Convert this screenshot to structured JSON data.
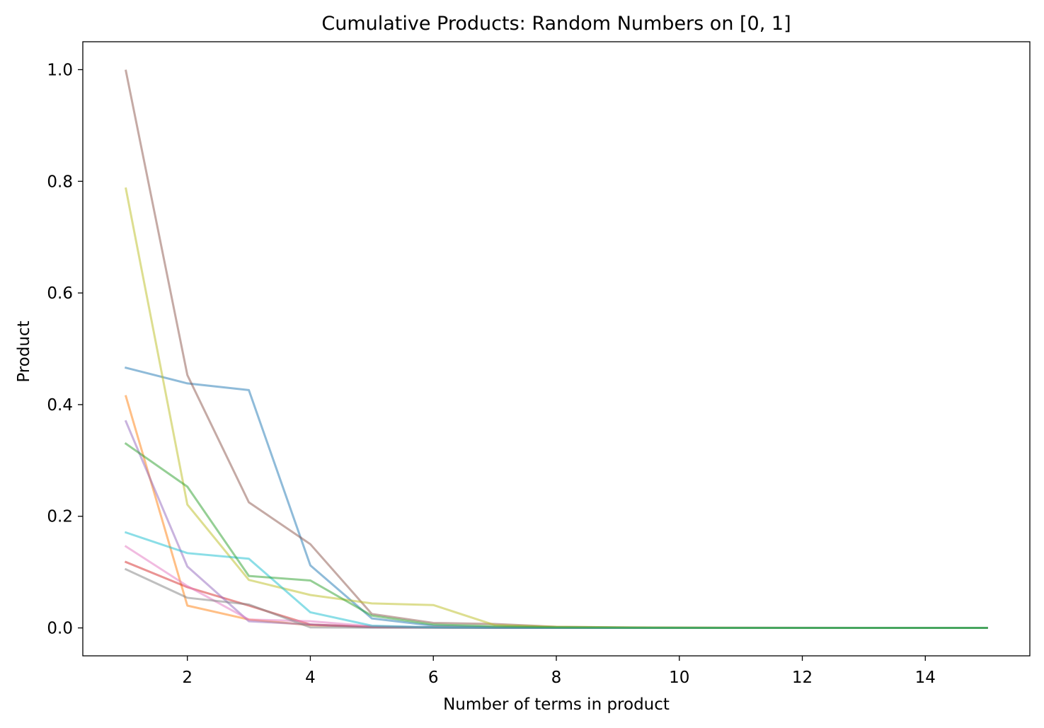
{
  "chart_data": {
    "type": "line",
    "title": "Cumulative Products: Random Numbers on [0, 1]",
    "xlabel": "Number of terms in product",
    "ylabel": "Product",
    "xlim": [
      0.3,
      15.7
    ],
    "ylim": [
      -0.05,
      1.05
    ],
    "x_ticks": [
      2,
      4,
      6,
      8,
      10,
      12,
      14
    ],
    "x_tick_labels": [
      "2",
      "4",
      "6",
      "8",
      "10",
      "12",
      "14"
    ],
    "y_ticks": [
      0.0,
      0.2,
      0.4,
      0.6,
      0.8,
      1.0
    ],
    "y_tick_labels": [
      "0.0",
      "0.2",
      "0.4",
      "0.6",
      "0.8",
      "1.0"
    ],
    "grid": false,
    "line_opacity": 0.5,
    "x": [
      1,
      2,
      3,
      4,
      5,
      6,
      7,
      8,
      9,
      10,
      11,
      12,
      13,
      14,
      15
    ],
    "series": [
      {
        "color": "#1f77b4",
        "values": [
          0.466,
          0.438,
          0.426,
          0.112,
          0.017,
          0.004,
          0.001,
          0.0005,
          0.0002,
          0.0001,
          0,
          0,
          0,
          0,
          0
        ]
      },
      {
        "color": "#ff7f0e",
        "values": [
          0.415,
          0.04,
          0.015,
          0.005,
          0.002,
          0.001,
          0.0004,
          0.0002,
          0.0001,
          0,
          0,
          0,
          0,
          0,
          0
        ]
      },
      {
        "color": "#d62728",
        "values": [
          0.118,
          0.073,
          0.04,
          0.006,
          0.002,
          0.001,
          0.0005,
          0.0002,
          0.0001,
          0,
          0,
          0,
          0,
          0,
          0
        ]
      },
      {
        "color": "#9467bd",
        "values": [
          0.37,
          0.11,
          0.012,
          0.006,
          0.001,
          0.0005,
          0.0002,
          0.0001,
          0,
          0,
          0,
          0,
          0,
          0,
          0
        ]
      },
      {
        "color": "#8c564b",
        "values": [
          0.998,
          0.453,
          0.225,
          0.15,
          0.025,
          0.009,
          0.007,
          0.002,
          0.001,
          0.0005,
          0.0003,
          0.0002,
          0.0001,
          0,
          0
        ]
      },
      {
        "color": "#e377c2",
        "values": [
          0.146,
          0.075,
          0.015,
          0.012,
          0.003,
          0.001,
          0.0005,
          0.0002,
          0.0001,
          0,
          0,
          0,
          0,
          0,
          0
        ]
      },
      {
        "color": "#7f7f7f",
        "values": [
          0.105,
          0.054,
          0.042,
          0.001,
          0.0005,
          0.0003,
          0.0001,
          0,
          0,
          0,
          0,
          0,
          0,
          0,
          0
        ]
      },
      {
        "color": "#bcbd22",
        "values": [
          0.787,
          0.221,
          0.086,
          0.059,
          0.044,
          0.041,
          0.005,
          0.002,
          0.001,
          0.0005,
          0.0002,
          0.0001,
          0,
          0,
          0
        ]
      },
      {
        "color": "#17becf",
        "values": [
          0.171,
          0.134,
          0.124,
          0.028,
          0.004,
          0.001,
          0.0005,
          0.0002,
          0.0001,
          0,
          0,
          0,
          0,
          0,
          0
        ]
      },
      {
        "color": "#2ca02c",
        "values": [
          0.33,
          0.253,
          0.093,
          0.085,
          0.022,
          0.006,
          0.003,
          0.001,
          0.0005,
          0.0002,
          0.0001,
          0,
          0,
          0,
          0
        ]
      }
    ]
  }
}
